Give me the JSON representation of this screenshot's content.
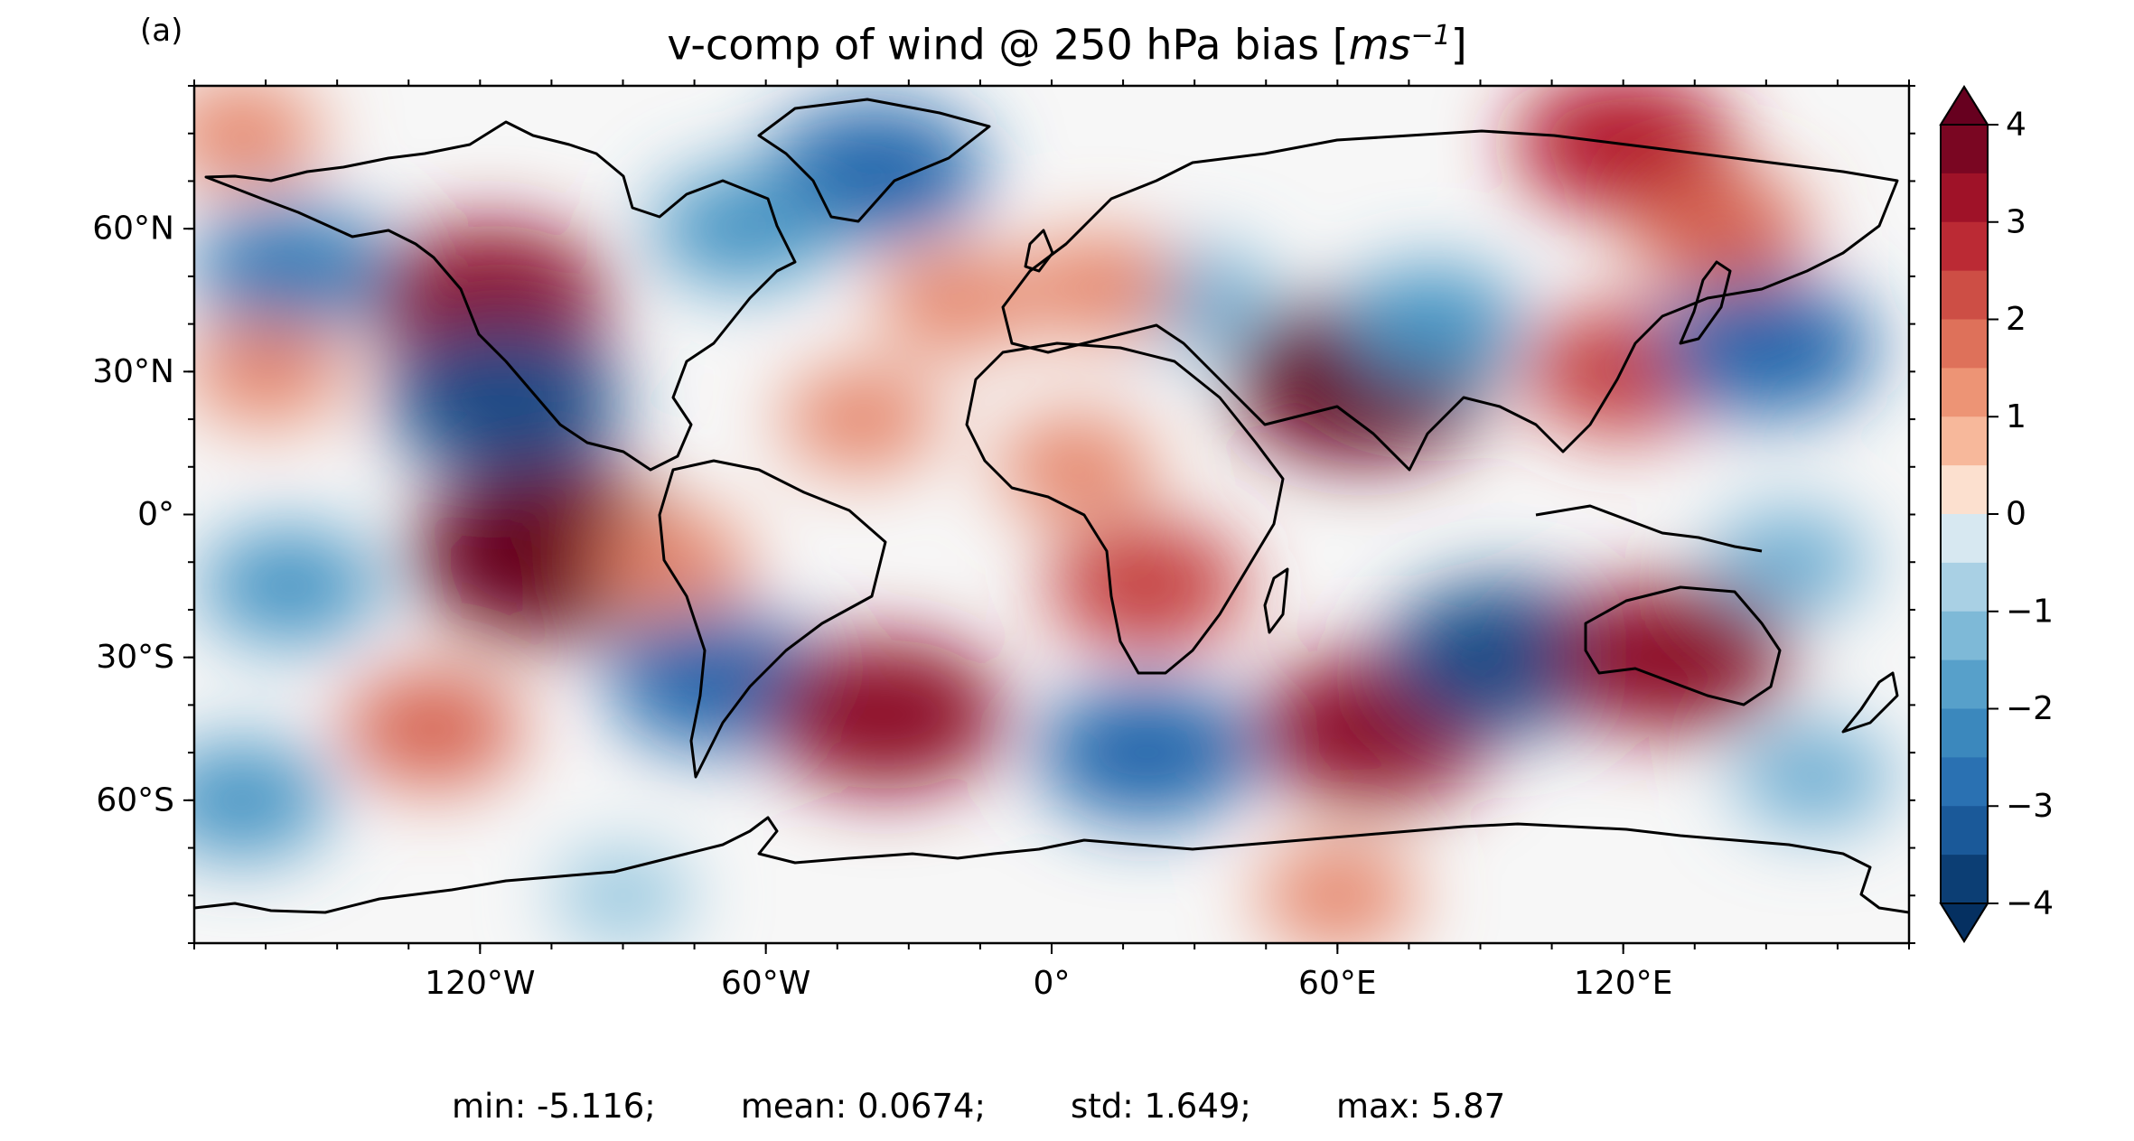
{
  "panel_label": "(a)",
  "title": {
    "prefix": "v-comp of wind @ 250 hPa bias [",
    "unit_base": "ms",
    "unit_exp": "−1",
    "suffix": "]"
  },
  "map": {
    "projection": "PlateCarree",
    "lon_range": [
      -180,
      180
    ],
    "lat_range": [
      -90,
      90
    ],
    "lon_ticks": [
      {
        "value": -120,
        "label": "120°W"
      },
      {
        "value": -60,
        "label": "60°W"
      },
      {
        "value": 0,
        "label": "0°"
      },
      {
        "value": 60,
        "label": "60°E"
      },
      {
        "value": 120,
        "label": "120°E"
      }
    ],
    "lat_ticks": [
      {
        "value": 60,
        "label": "60°N"
      },
      {
        "value": 30,
        "label": "30°N"
      },
      {
        "value": 0,
        "label": "0°"
      },
      {
        "value": -30,
        "label": "30°S"
      },
      {
        "value": -60,
        "label": "60°S"
      }
    ],
    "colormap": "RdBu_r",
    "colors": {
      "deep_red": "#67001f",
      "red": "#b2182b",
      "light_red": "#f4a582",
      "white": "#f7f7f7",
      "light_blue": "#92c5de",
      "blue": "#2166ac",
      "deep_blue": "#053061",
      "coastline": "#000000"
    },
    "bias_anomalies": [
      {
        "lon": -118,
        "lat": 45,
        "value": 3.5
      },
      {
        "lon": -115,
        "lat": 24,
        "value": -3.5
      },
      {
        "lon": -105,
        "lat": -8,
        "value": 4.5
      },
      {
        "lon": -160,
        "lat": 52,
        "value": -2.5
      },
      {
        "lon": -165,
        "lat": 30,
        "value": 1.5
      },
      {
        "lon": -160,
        "lat": -15,
        "value": -2
      },
      {
        "lon": -130,
        "lat": -45,
        "value": 2
      },
      {
        "lon": -70,
        "lat": -35,
        "value": -3
      },
      {
        "lon": -35,
        "lat": -42,
        "value": 3.5
      },
      {
        "lon": -37,
        "lat": 72,
        "value": -3
      },
      {
        "lon": -65,
        "lat": 60,
        "value": -2
      },
      {
        "lon": -20,
        "lat": 45,
        "value": 1.5
      },
      {
        "lon": 20,
        "lat": -50,
        "value": -3
      },
      {
        "lon": 5,
        "lat": 10,
        "value": 1.5
      },
      {
        "lon": 20,
        "lat": -15,
        "value": 2.5
      },
      {
        "lon": 65,
        "lat": 28,
        "value": 4
      },
      {
        "lon": 68,
        "lat": -45,
        "value": 3.5
      },
      {
        "lon": 95,
        "lat": -30,
        "value": -3.5
      },
      {
        "lon": 130,
        "lat": -30,
        "value": 3.5
      },
      {
        "lon": 120,
        "lat": 30,
        "value": 2.5
      },
      {
        "lon": 150,
        "lat": 35,
        "value": -3
      },
      {
        "lon": 120,
        "lat": 78,
        "value": 3
      },
      {
        "lon": 80,
        "lat": 40,
        "value": -2
      },
      {
        "lon": 30,
        "lat": 45,
        "value": -1.5
      },
      {
        "lon": 10,
        "lat": 48,
        "value": 1.5
      },
      {
        "lon": 155,
        "lat": -10,
        "value": -1.5
      },
      {
        "lon": 160,
        "lat": -55,
        "value": -1.5
      },
      {
        "lon": 60,
        "lat": -80,
        "value": 1.5
      },
      {
        "lon": -90,
        "lat": -80,
        "value": -1
      },
      {
        "lon": -170,
        "lat": -60,
        "value": -2
      },
      {
        "lon": -40,
        "lat": 20,
        "value": 1.5
      },
      {
        "lon": 140,
        "lat": 60,
        "value": 2
      },
      {
        "lon": -170,
        "lat": 80,
        "value": 1.5
      },
      {
        "lon": -80,
        "lat": -10,
        "value": 1.5
      }
    ]
  },
  "colorbar": {
    "min": -4,
    "max": 4,
    "levels": 16,
    "ticks": [
      "4",
      "3",
      "2",
      "1",
      "0",
      "−1",
      "−2",
      "−3",
      "−4"
    ],
    "extend": "both"
  },
  "stats": {
    "text": "min: -5.116;        mean: 0.0674;        std: 1.649;        max: 5.87"
  }
}
